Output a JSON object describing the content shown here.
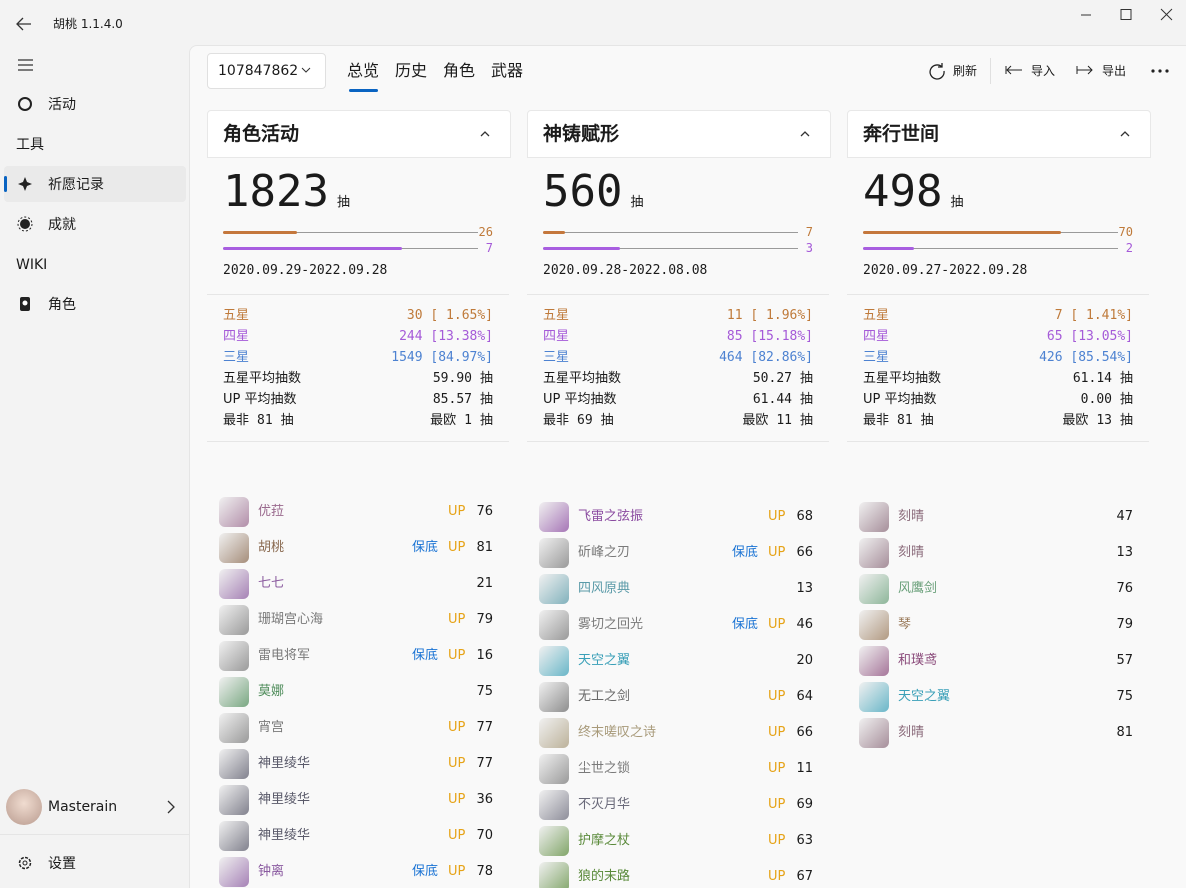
{
  "app": {
    "title": "胡桃 1.1.4.0"
  },
  "nav": {
    "activity": "活动",
    "tools_header": "工具",
    "wish": "祈愿记录",
    "achievement": "成就",
    "wiki_header": "WIKI",
    "character": "角色",
    "user": "Masterain",
    "settings": "设置"
  },
  "toolbar": {
    "uid": "107847862",
    "tabs": [
      "总览",
      "历史",
      "角色",
      "武器"
    ],
    "actions": [
      "刷新",
      "导入",
      "导出"
    ]
  },
  "cards": [
    {
      "title": "角色活动",
      "total": 1823,
      "unit": "抽",
      "pity": [
        {
          "value": 26,
          "range": [
            0,
            90
          ]
        },
        {
          "value": 7,
          "range": [
            0,
            10
          ]
        }
      ],
      "date_range": "2020.09.29-2022.09.28",
      "rarity": [
        {
          "label": "五星",
          "value": "30 [ 1.65%]"
        },
        {
          "label": "四星",
          "value": "244 [13.38%]"
        },
        {
          "label": "三星",
          "value": "1549 [84.97%]"
        }
      ],
      "stats": [
        {
          "label": "五星平均抽数",
          "value": "59.90",
          "unit": "抽"
        },
        {
          "label": "UP 平均抽数",
          "value": "85.57",
          "unit": "抽"
        }
      ],
      "extremes": [
        {
          "label": "最非",
          "value": 81,
          "unit": "抽"
        },
        {
          "label": "最欧",
          "value": 1,
          "unit": "抽"
        }
      ],
      "items": [
        {
          "name": "优菈",
          "color": "#9a6a8e",
          "up": "UP",
          "count": 76
        },
        {
          "name": "胡桃",
          "color": "#8a6a50",
          "guarantee": "保底",
          "up": "UP",
          "count": 81
        },
        {
          "name": "七七",
          "color": "#8a5a9e",
          "count": 21
        },
        {
          "name": "珊瑚宫心海",
          "color": "#7a7a7a",
          "up": "UP",
          "count": 79
        },
        {
          "name": "雷电将军",
          "color": "#7a7a7a",
          "guarantee": "保底",
          "up": "UP",
          "count": 16
        },
        {
          "name": "莫娜",
          "color": "#4e8c5a",
          "count": 75
        },
        {
          "name": "宵宫",
          "color": "#7a7a7a",
          "up": "UP",
          "count": 77
        },
        {
          "name": "神里绫华",
          "color": "#5a5a6a",
          "up": "UP",
          "count": 77
        },
        {
          "name": "神里绫华",
          "color": "#5a5a6a",
          "up": "UP",
          "count": 36
        },
        {
          "name": "神里绫华",
          "color": "#5a5a6a",
          "up": "UP",
          "count": 70
        },
        {
          "name": "钟离",
          "color": "#8a5aa0",
          "guarantee": "保底",
          "up": "UP",
          "count": 78
        }
      ]
    },
    {
      "title": "神铸赋形",
      "total": 560,
      "unit": "抽",
      "pity": [
        {
          "value": 7,
          "range": [
            0,
            80
          ]
        },
        {
          "value": 3,
          "range": [
            0,
            10
          ]
        }
      ],
      "date_range": "2020.09.28-2022.08.08",
      "rarity": [
        {
          "label": "五星",
          "value": "11 [ 1.96%]"
        },
        {
          "label": "四星",
          "value": "85 [15.18%]"
        },
        {
          "label": "三星",
          "value": "464 [82.86%]"
        }
      ],
      "stats": [
        {
          "label": "五星平均抽数",
          "value": "50.27",
          "unit": "抽"
        },
        {
          "label": "UP 平均抽数",
          "value": "61.44",
          "unit": "抽"
        }
      ],
      "extremes": [
        {
          "label": "最非",
          "value": 69,
          "unit": "抽"
        },
        {
          "label": "最欧",
          "value": 11,
          "unit": "抽"
        }
      ],
      "items": [
        {
          "name": "飞雷之弦振",
          "color": "#8a4aa0",
          "up": "UP",
          "count": 68
        },
        {
          "name": "斫峰之刃",
          "color": "#7a7a7a",
          "guarantee": "保底",
          "up": "UP",
          "count": 66
        },
        {
          "name": "四风原典",
          "color": "#5a9aa8",
          "count": 13
        },
        {
          "name": "雾切之回光",
          "color": "#7a7a7a",
          "guarantee": "保底",
          "up": "UP",
          "count": 46
        },
        {
          "name": "天空之翼",
          "color": "#3aa0b8",
          "count": 20
        },
        {
          "name": "无工之剑",
          "color": "#6a6a6a",
          "up": "UP",
          "count": 64
        },
        {
          "name": "终末嗟叹之诗",
          "color": "#a89a7a",
          "up": "UP",
          "count": 66
        },
        {
          "name": "尘世之锁",
          "color": "#7a7a7a",
          "up": "UP",
          "count": 11
        },
        {
          "name": "不灭月华",
          "color": "#6a6a7a",
          "up": "UP",
          "count": 69
        },
        {
          "name": "护摩之杖",
          "color": "#5a8a3a",
          "up": "UP",
          "count": 63
        },
        {
          "name": "狼的末路",
          "color": "#5a8a3a",
          "up": "UP",
          "count": 67
        }
      ]
    },
    {
      "title": "奔行世间",
      "total": 498,
      "unit": "抽",
      "pity": [
        {
          "value": 70,
          "range": [
            0,
            90
          ]
        },
        {
          "value": 2,
          "range": [
            0,
            10
          ]
        }
      ],
      "date_range": "2020.09.27-2022.09.28",
      "rarity": [
        {
          "label": "五星",
          "value": "7 [ 1.41%]"
        },
        {
          "label": "四星",
          "value": "65 [13.05%]"
        },
        {
          "label": "三星",
          "value": "426 [85.54%]"
        }
      ],
      "stats": [
        {
          "label": "五星平均抽数",
          "value": "61.14",
          "unit": "抽"
        },
        {
          "label": "UP 平均抽数",
          "value": "0.00",
          "unit": "抽"
        }
      ],
      "extremes": [
        {
          "label": "最非",
          "value": 81,
          "unit": "抽"
        },
        {
          "label": "最欧",
          "value": 13,
          "unit": "抽"
        }
      ],
      "items": [
        {
          "name": "刻晴",
          "color": "#8a6a7a",
          "count": 47
        },
        {
          "name": "刻晴",
          "color": "#8a6a7a",
          "count": 13
        },
        {
          "name": "风鹰剑",
          "color": "#6aa07a",
          "count": 76
        },
        {
          "name": "琴",
          "color": "#9a7a5a",
          "count": 79
        },
        {
          "name": "和璞鸢",
          "color": "#8a4a7a",
          "count": 57
        },
        {
          "name": "天空之翼",
          "color": "#3aa0b8",
          "count": 75
        },
        {
          "name": "刻晴",
          "color": "#8a6a7a",
          "count": 81
        }
      ]
    }
  ]
}
